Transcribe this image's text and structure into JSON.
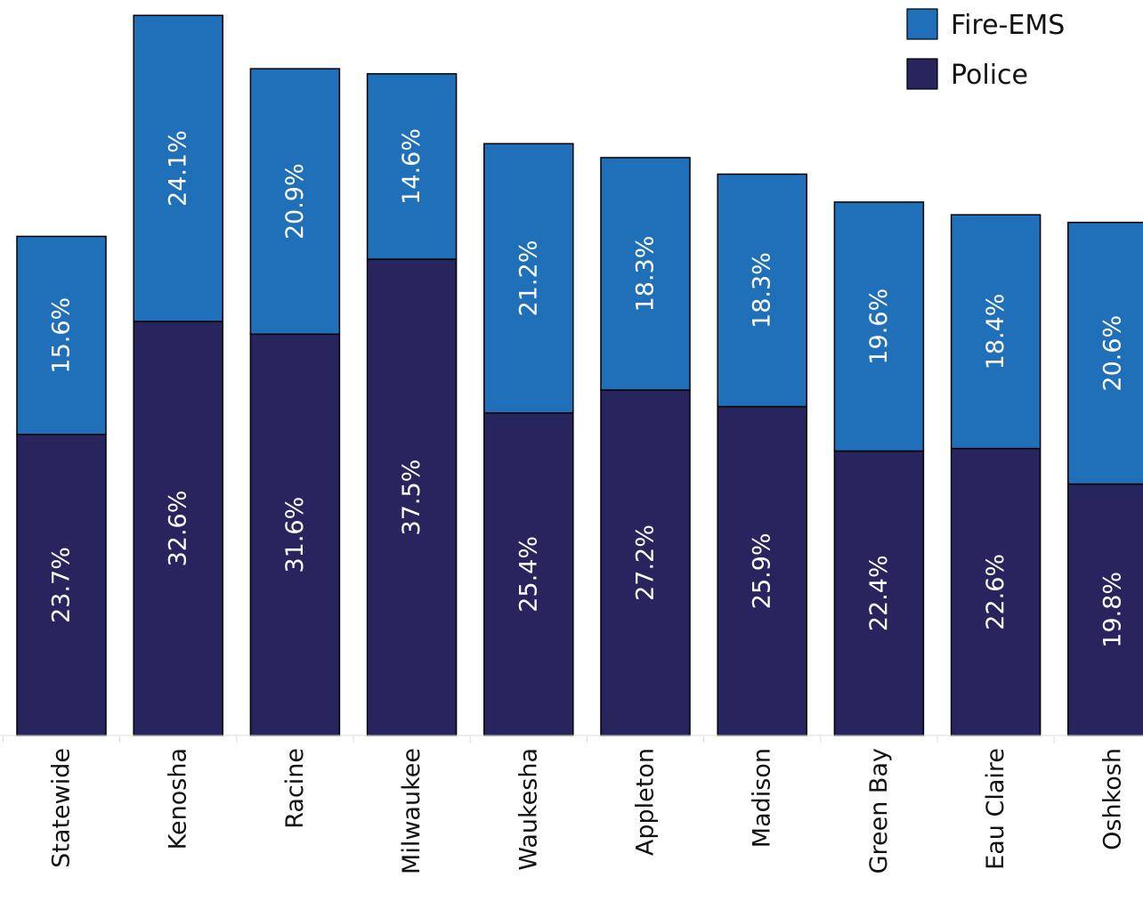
{
  "chart_data": {
    "type": "bar",
    "stacked": true,
    "categories": [
      "Statewide",
      "Kenosha",
      "Racine",
      "Milwaukee",
      "Waukesha",
      "Appleton",
      "Madison",
      "Green Bay",
      "Eau Claire",
      "Oshkosh"
    ],
    "series": [
      {
        "name": "Police",
        "color": "#28245e",
        "values": [
          23.7,
          32.6,
          31.6,
          37.5,
          25.4,
          27.2,
          25.9,
          22.4,
          22.6,
          19.8
        ],
        "labels": [
          "23.7%",
          "32.6%",
          "31.6%",
          "37.5%",
          "25.4%",
          "27.2%",
          "25.9%",
          "22.4%",
          "22.6%",
          "19.8%"
        ]
      },
      {
        "name": "Fire-EMS",
        "color": "#2070b9",
        "values": [
          15.6,
          24.1,
          20.9,
          14.6,
          21.2,
          18.3,
          18.3,
          19.6,
          18.4,
          20.6
        ],
        "labels": [
          "15.6%",
          "24.1%",
          "20.9%",
          "14.6%",
          "21.2%",
          "18.3%",
          "18.3%",
          "19.6%",
          "18.4%",
          "20.6%"
        ]
      }
    ],
    "legend": {
      "position": "top-right",
      "items": [
        "Fire-EMS",
        "Police"
      ]
    },
    "ylim": [
      0,
      57
    ],
    "grid": false,
    "axis_visible": false
  }
}
